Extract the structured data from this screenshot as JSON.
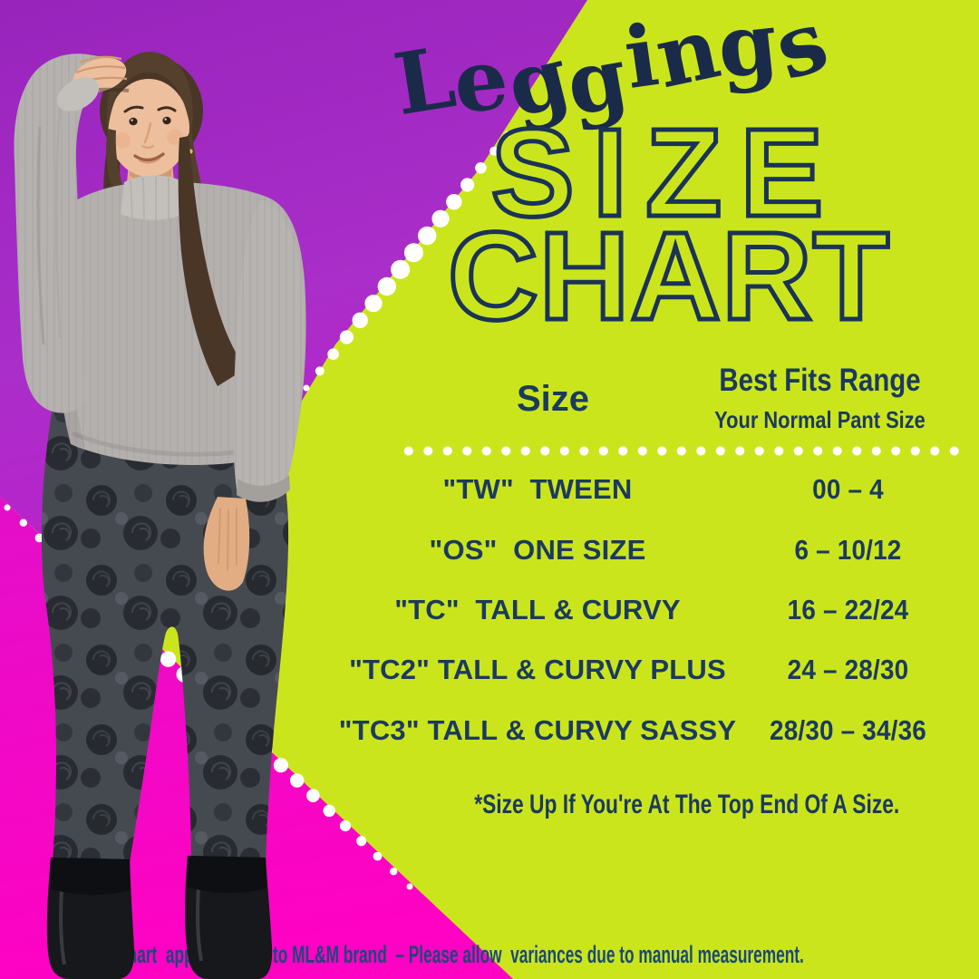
{
  "poster": {
    "script_title": "Leggings",
    "main_title_line1": "SIZE",
    "main_title_line2": "CHART"
  },
  "table": {
    "size_header": "Size",
    "fit_header_line1": "Best Fits Range",
    "fit_header_line2": "Your Normal Pant Size",
    "rows": [
      {
        "size": "\"TW\"  TWEEN",
        "range": "00 – 4"
      },
      {
        "size": "\"OS\"  ONE SIZE",
        "range": "6 – 10/12"
      },
      {
        "size": "\"TC\"  TALL & CURVY",
        "range": "16 – 22/24"
      },
      {
        "size": "\"TC2\" TALL & CURVY PLUS",
        "range": "24 – 28/30"
      },
      {
        "size": "\"TC3\" TALL & CURVY SASSY",
        "range": "28/30 – 34/36"
      }
    ],
    "footnote": "*Size Up If You're At The Top End Of A Size."
  },
  "disclaimer": "*This chart  applies solely to ML&M brand  – Please allow  variances due to manual measurement.",
  "model": {
    "description": "Woman with hand on head wearing gray cropped turtleneck sweater, dark gray floral leggings and black ankle boots"
  },
  "colors": {
    "green": "#cbe51d",
    "purple": "#a52fc7",
    "pink": "#f907c6",
    "navy": "#1b3a5f",
    "title_navy": "#1a2c4d",
    "dot_white": "#ffffff"
  },
  "chart_data": {
    "type": "table",
    "title": "Leggings SIZE CHART",
    "columns": [
      "Size",
      "Best Fits Range — Your Normal Pant Size"
    ],
    "rows": [
      [
        "\"TW\" TWEEN",
        "00 – 4"
      ],
      [
        "\"OS\" ONE SIZE",
        "6 – 10/12"
      ],
      [
        "\"TC\" TALL & CURVY",
        "16 – 22/24"
      ],
      [
        "\"TC2\" TALL & CURVY PLUS",
        "24 – 28/30"
      ],
      [
        "\"TC3\" TALL & CURVY SASSY",
        "28/30 – 34/36"
      ]
    ],
    "notes": [
      "*Size Up If You're At The Top End Of A Size.",
      "*This chart applies solely to ML&M brand – Please allow variances due to manual measurement."
    ]
  }
}
